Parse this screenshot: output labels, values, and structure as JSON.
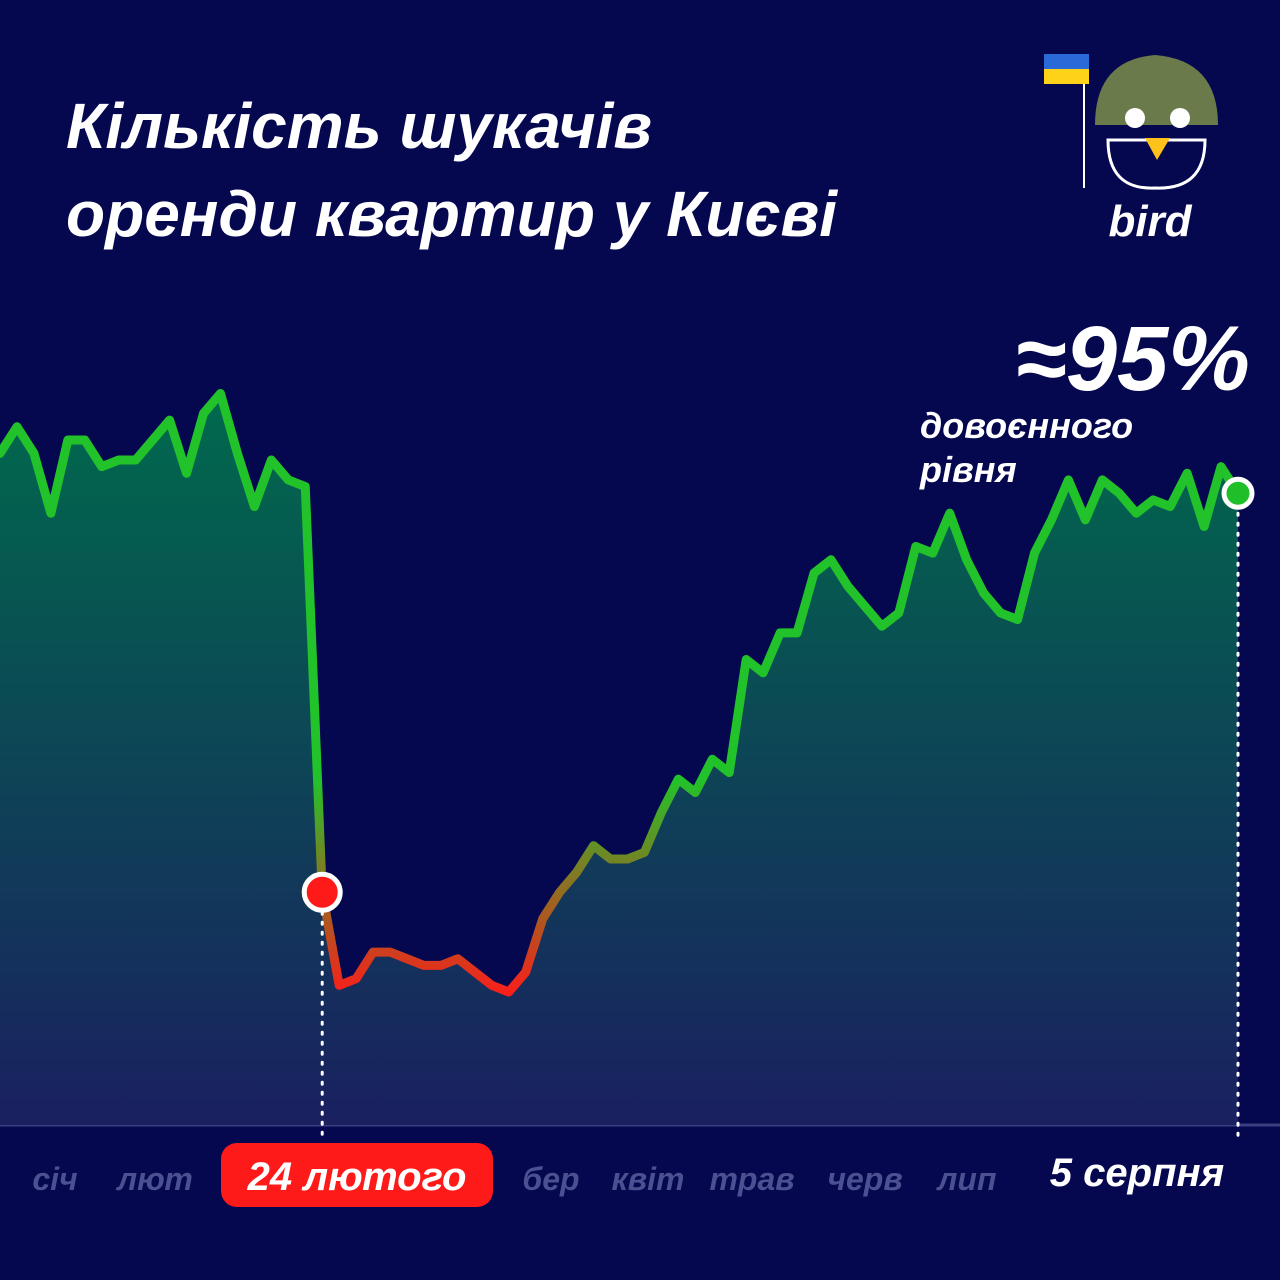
{
  "chart_data": {
    "type": "area",
    "title": [
      "Кількість шукачів",
      "оренди квартир у Києві"
    ],
    "logo": "bird",
    "annotation": {
      "headline": "≈95%",
      "text": [
        "довоєнного",
        "рівня"
      ]
    },
    "x_labels": [
      "січ",
      "лют",
      "бер",
      "квіт",
      "трав",
      "черв",
      "лип"
    ],
    "markers": [
      {
        "label": "24 лютого",
        "x": 55,
        "color": "#ff1a1a"
      },
      {
        "label": "5 серпня",
        "x": 217,
        "color": "#1fbf2a"
      }
    ],
    "x": [
      -2,
      1,
      4,
      7,
      10,
      13,
      16,
      19,
      22,
      25,
      28,
      31,
      34,
      37,
      40,
      43,
      46,
      49,
      52,
      55,
      58,
      61,
      64,
      67,
      70,
      73,
      76,
      79,
      82,
      85,
      88,
      91,
      94,
      97,
      100,
      103,
      106,
      109,
      112,
      115,
      118,
      121,
      124,
      127,
      130,
      133,
      136,
      139,
      142,
      145,
      148,
      151,
      154,
      157,
      160,
      163,
      166,
      169,
      172,
      175,
      178,
      181,
      184,
      187,
      190,
      193,
      196,
      199,
      202,
      205,
      208,
      211,
      214,
      217
    ],
    "values": [
      101,
      105,
      101,
      92,
      103,
      103,
      99,
      100,
      100,
      103,
      106,
      98,
      107,
      110,
      101,
      93,
      100,
      97,
      96,
      35,
      21,
      22,
      26,
      26,
      25,
      24,
      24,
      25,
      23,
      21,
      20,
      23,
      31,
      35,
      38,
      42,
      40,
      40,
      41,
      47,
      52,
      50,
      55,
      53,
      70,
      68,
      74,
      74,
      83,
      85,
      81,
      78,
      75,
      77,
      87,
      86,
      92,
      85,
      80,
      77,
      76,
      86,
      91,
      97,
      91,
      97,
      95,
      92,
      94,
      93,
      98,
      90,
      99,
      95
    ],
    "line_colors": [
      "#ff1a1a",
      "#22c22a"
    ],
    "xlim": [
      -2,
      217
    ],
    "ylim": [
      0,
      120
    ]
  }
}
